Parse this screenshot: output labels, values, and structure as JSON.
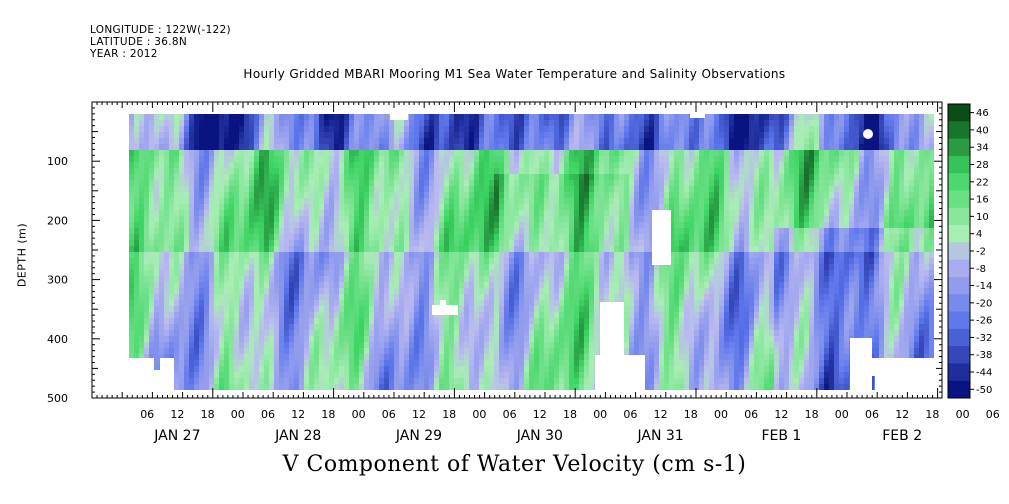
{
  "meta": {
    "longitude": "LONGITUDE : 122W(-122)",
    "latitude": "LATITUDE : 36.8N",
    "year": "YEAR : 2012"
  },
  "chart_data": {
    "type": "heatmap",
    "title": "Hourly Gridded MBARI Mooring M1 Sea Water Temperature and Salinity Observations",
    "caption": "V Component of Water Velocity (cm s-1)",
    "ylabel": "DEPTH (m)",
    "y_axis": {
      "ylim": [
        500,
        0
      ],
      "inverted": true,
      "ticks": [
        100,
        200,
        300,
        400,
        500
      ],
      "tick_labels": [
        "100",
        "200",
        "300",
        "400",
        "500"
      ]
    },
    "x_axis": {
      "hour_tick_labels": [
        "06",
        "12",
        "18",
        "00",
        "06",
        "12",
        "18",
        "00",
        "06",
        "12",
        "18",
        "00",
        "06",
        "12",
        "18",
        "00",
        "06",
        "12",
        "18",
        "00",
        "06",
        "12",
        "18",
        "00",
        "06",
        "12",
        "18",
        "00",
        "06",
        "12",
        "18"
      ],
      "day_labels": [
        "JAN 27",
        "JAN 28",
        "JAN 29",
        "JAN 30",
        "JAN 31",
        "FEB  1",
        "FEB  2"
      ]
    },
    "colorbar": {
      "levels": [
        46,
        40,
        34,
        28,
        22,
        16,
        10,
        4,
        -2,
        -8,
        -14,
        -20,
        -26,
        -32,
        -38,
        -44,
        -50
      ],
      "level_labels": [
        "46",
        "40",
        "34",
        "28",
        "22",
        "16",
        "10",
        "4",
        "-2",
        "-8",
        "-14",
        "-20",
        "-26",
        "-32",
        "-38",
        "-44",
        "-50"
      ]
    },
    "grid": false,
    "legend": "colorbar-right",
    "colors": {
      "positive_high": "#0a4d16",
      "positive_mid": "#3dd463",
      "positive_low": "#a8eeb4",
      "negative_low": "#b9b9f0",
      "negative_mid": "#5a74ea",
      "negative_high": "#0a1480"
    }
  }
}
